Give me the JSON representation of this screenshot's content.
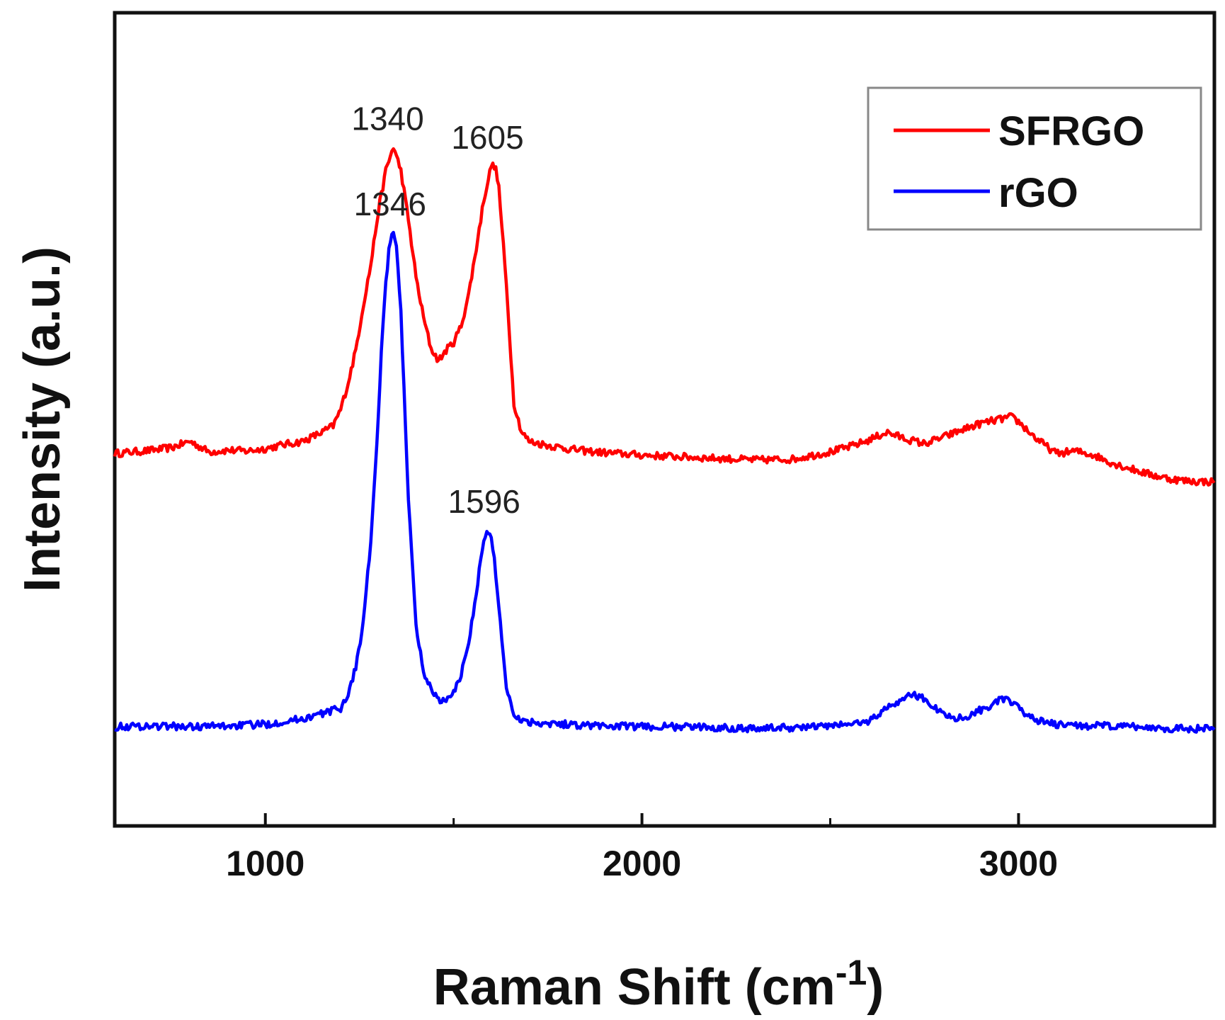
{
  "chart_data": {
    "type": "line",
    "title": "",
    "xlabel": "Raman Shift (cm",
    "xlabel_superscript": "-1",
    "xlabel_suffix": ")",
    "ylabel": "Intensity (a.u.)",
    "xlim": [
      600,
      3520
    ],
    "ylim": [
      0,
      100
    ],
    "x_ticks": [
      1000,
      2000,
      3000
    ],
    "x_minor_ticks": [
      1500,
      2500
    ],
    "legend_position": "top-right",
    "grid": false,
    "colors": {
      "axis": "#111111",
      "legend_border": "#888888"
    },
    "series": [
      {
        "name": "SFRGO",
        "color": "#ff0000",
        "x": [
          600,
          700,
          750,
          800,
          850,
          900,
          950,
          1000,
          1050,
          1100,
          1150,
          1180,
          1200,
          1220,
          1240,
          1260,
          1280,
          1300,
          1320,
          1340,
          1360,
          1380,
          1400,
          1420,
          1440,
          1460,
          1480,
          1500,
          1520,
          1540,
          1560,
          1580,
          1600,
          1610,
          1620,
          1640,
          1660,
          1680,
          1700,
          1750,
          1800,
          1850,
          1900,
          2000,
          2100,
          2200,
          2300,
          2400,
          2500,
          2550,
          2600,
          2650,
          2700,
          2750,
          2800,
          2850,
          2900,
          2950,
          2980,
          3000,
          3050,
          3100,
          3150,
          3200,
          3250,
          3300,
          3350,
          3400,
          3450,
          3520
        ],
        "y": [
          45.8,
          46.2,
          46.5,
          47.3,
          46.0,
          46.2,
          46.1,
          46.4,
          46.9,
          47.3,
          48.4,
          49.2,
          51.2,
          54.5,
          58.5,
          64.0,
          69.0,
          75.6,
          80.6,
          83.5,
          80.6,
          74.5,
          67.5,
          62.5,
          58.7,
          57.2,
          58.5,
          59.5,
          61.5,
          65.4,
          71.0,
          77.0,
          81.2,
          81.2,
          78.5,
          66.5,
          52.0,
          48.5,
          47.3,
          46.8,
          46.4,
          46.1,
          45.9,
          45.6,
          45.4,
          45.2,
          45.0,
          45.1,
          46.0,
          46.6,
          47.4,
          48.4,
          47.6,
          47.0,
          47.8,
          48.7,
          49.5,
          50.0,
          50.3,
          49.7,
          47.5,
          45.8,
          46.1,
          45.6,
          44.6,
          43.9,
          43.2,
          42.7,
          42.4,
          42.3
        ]
      },
      {
        "name": "rGO",
        "color": "#0000ff",
        "x": [
          600,
          700,
          800,
          900,
          1000,
          1100,
          1150,
          1200,
          1220,
          1240,
          1260,
          1280,
          1300,
          1310,
          1320,
          1330,
          1340,
          1350,
          1360,
          1370,
          1380,
          1400,
          1420,
          1440,
          1460,
          1480,
          1500,
          1520,
          1540,
          1560,
          1580,
          1590,
          1600,
          1610,
          1620,
          1640,
          1660,
          1680,
          1700,
          1800,
          1900,
          2000,
          2100,
          2200,
          2300,
          2400,
          2500,
          2600,
          2650,
          2700,
          2720,
          2750,
          2800,
          2850,
          2900,
          2950,
          2970,
          3000,
          3050,
          3100,
          3200,
          3300,
          3400,
          3520
        ],
        "y": [
          12.2,
          12.3,
          12.2,
          12.3,
          12.5,
          13.2,
          13.8,
          14.5,
          16.2,
          19.5,
          25.0,
          35.0,
          50.0,
          60.0,
          67.0,
          71.5,
          73.0,
          70.5,
          63.0,
          52.0,
          40.0,
          24.5,
          19.0,
          16.8,
          15.6,
          15.3,
          16.3,
          18.7,
          22.5,
          28.8,
          35.0,
          36.4,
          35.2,
          32.0,
          27.0,
          17.0,
          13.8,
          13.0,
          12.8,
          12.5,
          12.3,
          12.2,
          12.2,
          12.1,
          12.0,
          12.1,
          12.3,
          12.8,
          14.5,
          15.8,
          16.2,
          15.6,
          13.7,
          13.2,
          14.3,
          15.4,
          15.6,
          14.4,
          13.0,
          12.4,
          12.3,
          12.2,
          12.0,
          11.9
        ]
      }
    ],
    "annotations": [
      {
        "text": "1340",
        "x": 1340,
        "y": 83.5,
        "series": "SFRGO"
      },
      {
        "text": "1605",
        "x": 1605,
        "y": 81.2,
        "series": "SFRGO"
      },
      {
        "text": "1346",
        "x": 1346,
        "y": 73.0,
        "series": "rGO"
      },
      {
        "text": "1596",
        "x": 1596,
        "y": 36.4,
        "series": "rGO"
      }
    ]
  }
}
